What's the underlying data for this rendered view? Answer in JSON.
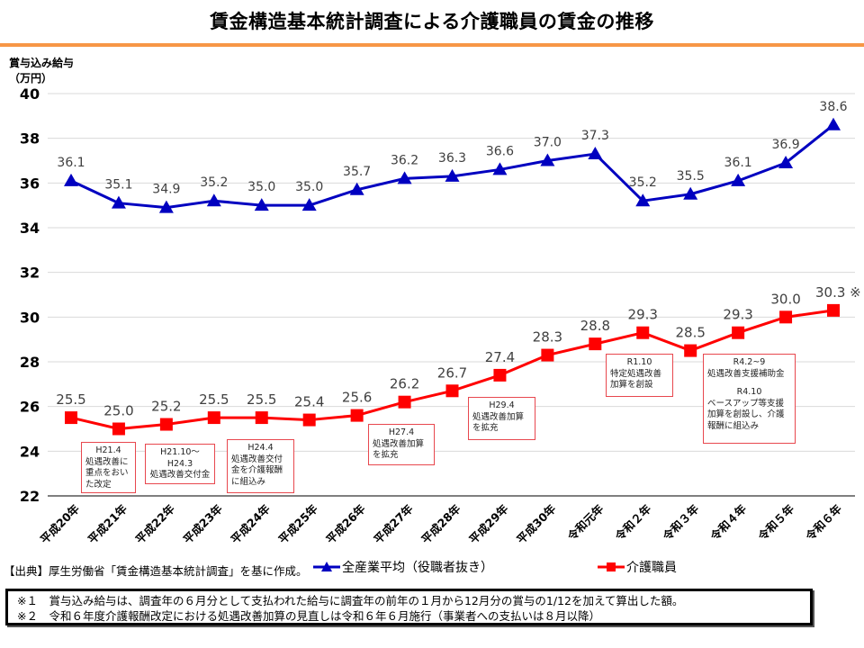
{
  "page": {
    "title": "賃金構造基本統計調査による介護職員の賃金の推移",
    "accent_color": "#f79646"
  },
  "chart_data": {
    "type": "line",
    "title": "賃金構造基本統計調査による介護職員の賃金の推移",
    "ylabel_lines": [
      "賞与込み給与",
      "（万円）"
    ],
    "xlabel": "",
    "ylim": [
      22,
      40
    ],
    "yticks": [
      22,
      24,
      26,
      28,
      30,
      32,
      34,
      36,
      38,
      40
    ],
    "grid": true,
    "legend_position": "bottom",
    "categories": [
      "平成20年",
      "平成21年",
      "平成22年",
      "平成23年",
      "平成24年",
      "平成25年",
      "平成26年",
      "平成27年",
      "平成28年",
      "平成29年",
      "平成30年",
      "令和元年",
      "令和２年",
      "令和３年",
      "令和４年",
      "令和５年",
      "令和６年"
    ],
    "series": [
      {
        "name": "全産業平均（役職者抜き）",
        "color": "#0000c0",
        "marker": "triangle",
        "values": [
          36.1,
          35.1,
          34.9,
          35.2,
          35.0,
          35.0,
          35.7,
          36.2,
          36.3,
          36.6,
          37.0,
          37.3,
          35.2,
          35.5,
          36.1,
          36.9,
          38.6
        ],
        "labels": [
          "36.1",
          "35.1",
          "34.9",
          "35.2",
          "35.0",
          "35.0",
          "35.7",
          "36.2",
          "36.3",
          "36.6",
          "37.0",
          "37.3",
          "35.2",
          "35.5",
          "36.1",
          "36.9",
          "38.6"
        ]
      },
      {
        "name": "介護職員",
        "color": "#ff0000",
        "marker": "square",
        "values": [
          25.5,
          25.0,
          25.2,
          25.5,
          25.5,
          25.4,
          25.6,
          26.2,
          26.7,
          27.4,
          28.3,
          28.8,
          29.3,
          28.5,
          29.3,
          30.0,
          30.3
        ],
        "labels": [
          "25.5",
          "25.0",
          "25.2",
          "25.5",
          "25.5",
          "25.4",
          "25.6",
          "26.2",
          "26.7",
          "27.4",
          "28.3",
          "28.8",
          "29.3",
          "28.5",
          "29.3",
          "30.0",
          "30.3 ※"
        ]
      }
    ],
    "annotations": [
      {
        "lines": [
          "H21.4",
          "処遇改善に",
          "重点をおい",
          "た改定"
        ]
      },
      {
        "lines": [
          "H21.10～",
          "H24.3",
          "処遇改善交付金"
        ]
      },
      {
        "lines": [
          "H24.4",
          "処遇改善交付",
          "金を介護報酬",
          "に組込み"
        ]
      },
      {
        "lines": [
          "H27.4",
          "処遇改善加算",
          "を拡充"
        ]
      },
      {
        "lines": [
          "H29.4",
          "処遇改善加算",
          "を拡充"
        ]
      },
      {
        "lines": [
          "R1.10",
          "特定処遇改善",
          "加算を創設"
        ]
      },
      {
        "lines": [
          "R4.2~9",
          "処遇改善支援補助金",
          "",
          "R4.10",
          "ベースアップ等支援",
          "加算を創設し、介護",
          "報酬に組込み"
        ]
      }
    ]
  },
  "footer": {
    "source": "【出典】厚生労働省「賃金構造基本統計調査」を基に作成。",
    "legend": {
      "all_industry": "全産業平均（役職者抜き）",
      "care_workers": "介護職員"
    },
    "notes": [
      "※１　賞与込み給与は、調査年の６月分として支払われた給与に調査年の前年の１月から12月分の賞与の1/12を加えて算出した額。",
      "※２　令和６年度介護報酬改定における処遇改善加算の見直しは令和６年６月施行（事業者への支払いは８月以降）"
    ]
  }
}
